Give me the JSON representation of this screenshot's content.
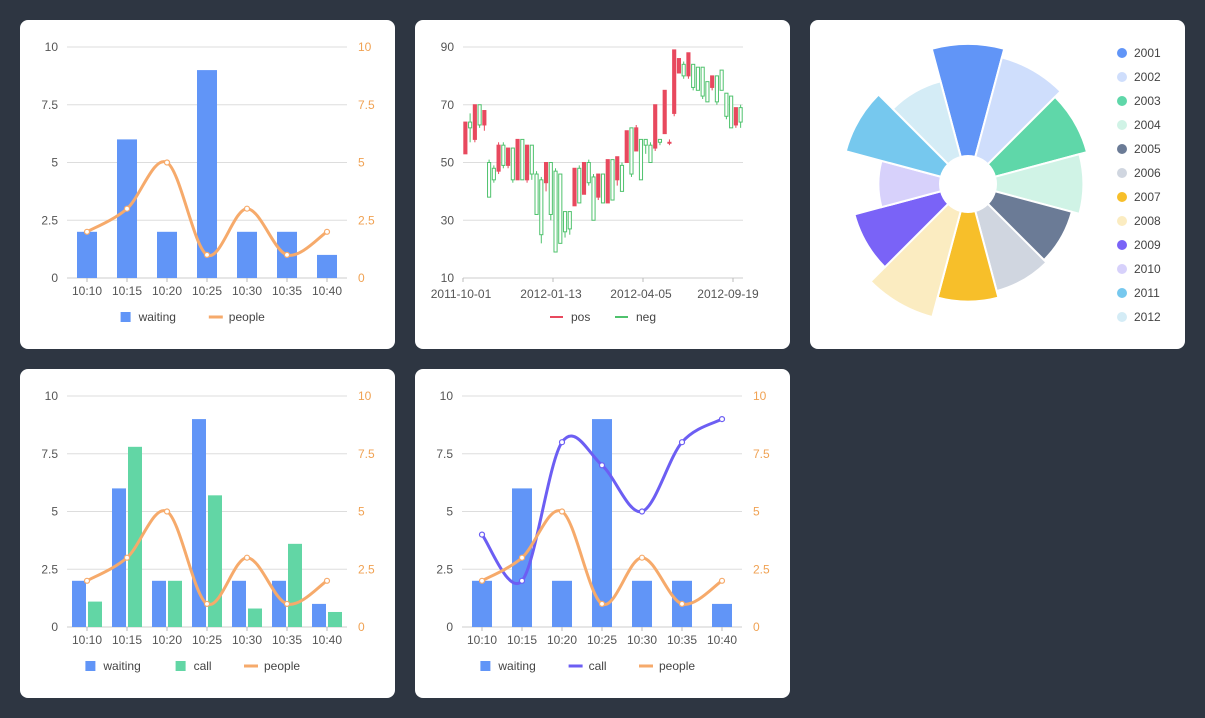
{
  "colors": {
    "blue": "#6195f7",
    "green": "#62d6a5",
    "orange": "#f6aa6b",
    "purple": "#6c5ef3",
    "red": "#e8495e",
    "neg": "#4fc26d",
    "axis_text": "#555555",
    "right_axis_text": "#f0a253",
    "grid": "#dddddd"
  },
  "legend": {
    "waiting": "waiting",
    "call": "call",
    "people": "people",
    "pos": "pos",
    "neg": "neg"
  },
  "chart_data": [
    {
      "id": "combo1",
      "type": "bar",
      "categories": [
        "10:10",
        "10:15",
        "10:20",
        "10:25",
        "10:30",
        "10:35",
        "10:40"
      ],
      "y_ticks": [
        "0",
        "2.5",
        "5",
        "7.5",
        "10"
      ],
      "ylim": [
        0,
        10
      ],
      "series": [
        {
          "name": "waiting",
          "kind": "bar",
          "axis": "left",
          "color": "#6195f7",
          "values": [
            2,
            6,
            2,
            9,
            2,
            2,
            1
          ]
        },
        {
          "name": "people",
          "kind": "line",
          "axis": "right",
          "color": "#f6aa6b",
          "values": [
            2,
            3,
            5,
            1,
            3,
            1,
            2
          ]
        }
      ],
      "grid": true,
      "legend_position": "bottom"
    },
    {
      "id": "candle",
      "type": "candlestick",
      "x_ticks": [
        "2011-10-01",
        "2012-01-13",
        "2012-04-05",
        "2012-09-19"
      ],
      "y_ticks": [
        "10",
        "30",
        "50",
        "70",
        "90"
      ],
      "ylim": [
        10,
        90
      ],
      "series_names": [
        "pos",
        "neg"
      ],
      "points": [
        [
          53,
          64,
          53,
          64
        ],
        [
          64,
          62,
          57,
          67
        ],
        [
          58,
          70,
          57,
          70
        ],
        [
          70,
          63,
          62,
          70
        ],
        [
          63,
          68,
          61,
          68
        ],
        [
          50,
          38,
          38,
          51
        ],
        [
          48,
          44,
          43,
          49
        ],
        [
          47,
          56,
          46,
          57
        ],
        [
          56,
          49,
          48,
          57
        ],
        [
          49,
          55,
          48,
          55
        ],
        [
          55,
          44,
          43,
          55
        ],
        [
          44,
          58,
          44,
          58
        ],
        [
          58,
          44,
          44,
          58
        ],
        [
          44,
          56,
          43,
          56
        ],
        [
          56,
          46,
          44,
          56
        ],
        [
          46,
          32,
          32,
          47
        ],
        [
          44,
          25,
          22,
          45
        ],
        [
          43,
          50,
          40,
          50
        ],
        [
          50,
          32,
          30,
          50
        ],
        [
          47,
          19,
          19,
          48
        ],
        [
          46,
          22,
          22,
          46
        ],
        [
          33,
          26,
          24,
          33
        ],
        [
          33,
          27,
          25,
          33
        ],
        [
          35,
          48,
          35,
          48
        ],
        [
          48,
          36,
          36,
          49
        ],
        [
          39,
          50,
          39,
          50
        ],
        [
          50,
          43,
          42,
          51
        ],
        [
          45,
          30,
          30,
          46
        ],
        [
          38,
          46,
          37,
          46
        ],
        [
          46,
          36,
          36,
          46
        ],
        [
          36,
          51,
          36,
          51
        ],
        [
          51,
          37,
          37,
          51
        ],
        [
          44,
          52,
          42,
          52
        ],
        [
          49,
          40,
          40,
          50
        ],
        [
          50,
          61,
          50,
          61
        ],
        [
          62,
          46,
          45,
          62
        ],
        [
          54,
          62,
          54,
          63
        ],
        [
          58,
          44,
          44,
          58
        ],
        [
          58,
          56,
          53,
          58
        ],
        [
          56,
          50,
          50,
          57
        ],
        [
          55,
          70,
          54,
          70
        ],
        [
          58,
          57,
          56,
          58
        ],
        [
          60,
          75,
          60,
          75
        ],
        [
          57,
          57,
          56,
          58
        ],
        [
          67,
          89,
          66,
          89
        ],
        [
          81,
          86,
          81,
          86
        ],
        [
          84,
          80,
          79,
          85
        ],
        [
          80,
          88,
          79,
          88
        ],
        [
          84,
          76,
          75,
          84
        ],
        [
          83,
          75,
          75,
          83
        ],
        [
          83,
          73,
          72,
          83
        ],
        [
          78,
          71,
          71,
          78
        ],
        [
          76,
          80,
          75,
          80
        ],
        [
          80,
          71,
          70,
          80
        ],
        [
          82,
          75,
          75,
          82
        ],
        [
          74,
          66,
          65,
          74
        ],
        [
          73,
          62,
          62,
          73
        ],
        [
          63,
          69,
          62,
          69
        ],
        [
          69,
          64,
          62,
          70
        ]
      ],
      "grid": true,
      "legend_position": "bottom"
    },
    {
      "id": "rose",
      "type": "pie",
      "categories": [
        "2001",
        "2002",
        "2003",
        "2004",
        "2005",
        "2006",
        "2007",
        "2008",
        "2009",
        "2010",
        "2011",
        "2012"
      ],
      "values": [
        100,
        92,
        85,
        78,
        71,
        74,
        80,
        98,
        80,
        55,
        88,
        70
      ],
      "colors": [
        "#6195f7",
        "#cfdefc",
        "#5fd7a9",
        "#d0f3e6",
        "#6b7b96",
        "#d0d6e0",
        "#f7bf2a",
        "#fbecc1",
        "#7a63f7",
        "#d7d1fb",
        "#76c8ee",
        "#d4ecf6"
      ],
      "legend_position": "right"
    },
    {
      "id": "combo2",
      "type": "bar",
      "categories": [
        "10:10",
        "10:15",
        "10:20",
        "10:25",
        "10:30",
        "10:35",
        "10:40"
      ],
      "y_ticks": [
        "0",
        "2.5",
        "5",
        "7.5",
        "10"
      ],
      "ylim": [
        0,
        10
      ],
      "series": [
        {
          "name": "waiting",
          "kind": "bar",
          "axis": "left",
          "color": "#6195f7",
          "values": [
            2,
            6,
            2,
            9,
            2,
            2,
            1
          ]
        },
        {
          "name": "call",
          "kind": "bar",
          "axis": "left",
          "color": "#62d6a5",
          "values": [
            1.1,
            7.8,
            2,
            5.7,
            0.8,
            3.6,
            0.65
          ]
        },
        {
          "name": "people",
          "kind": "line",
          "axis": "right",
          "color": "#f6aa6b",
          "values": [
            2,
            3,
            5,
            1,
            3,
            1,
            2
          ]
        }
      ],
      "grid": true,
      "legend_position": "bottom"
    },
    {
      "id": "combo3",
      "type": "bar",
      "categories": [
        "10:10",
        "10:15",
        "10:20",
        "10:25",
        "10:30",
        "10:35",
        "10:40"
      ],
      "y_ticks": [
        "0",
        "2.5",
        "5",
        "7.5",
        "10"
      ],
      "ylim": [
        0,
        10
      ],
      "series": [
        {
          "name": "waiting",
          "kind": "bar",
          "axis": "left",
          "color": "#6195f7",
          "values": [
            2,
            6,
            2,
            9,
            2,
            2,
            1
          ]
        },
        {
          "name": "call",
          "kind": "line",
          "axis": "left",
          "color": "#6c5ef3",
          "values": [
            4,
            2,
            8,
            7,
            5,
            8,
            9
          ]
        },
        {
          "name": "people",
          "kind": "line",
          "axis": "right",
          "color": "#f6aa6b",
          "values": [
            2,
            3,
            5,
            1,
            3,
            1,
            2
          ]
        }
      ],
      "grid": true,
      "legend_position": "bottom"
    }
  ]
}
